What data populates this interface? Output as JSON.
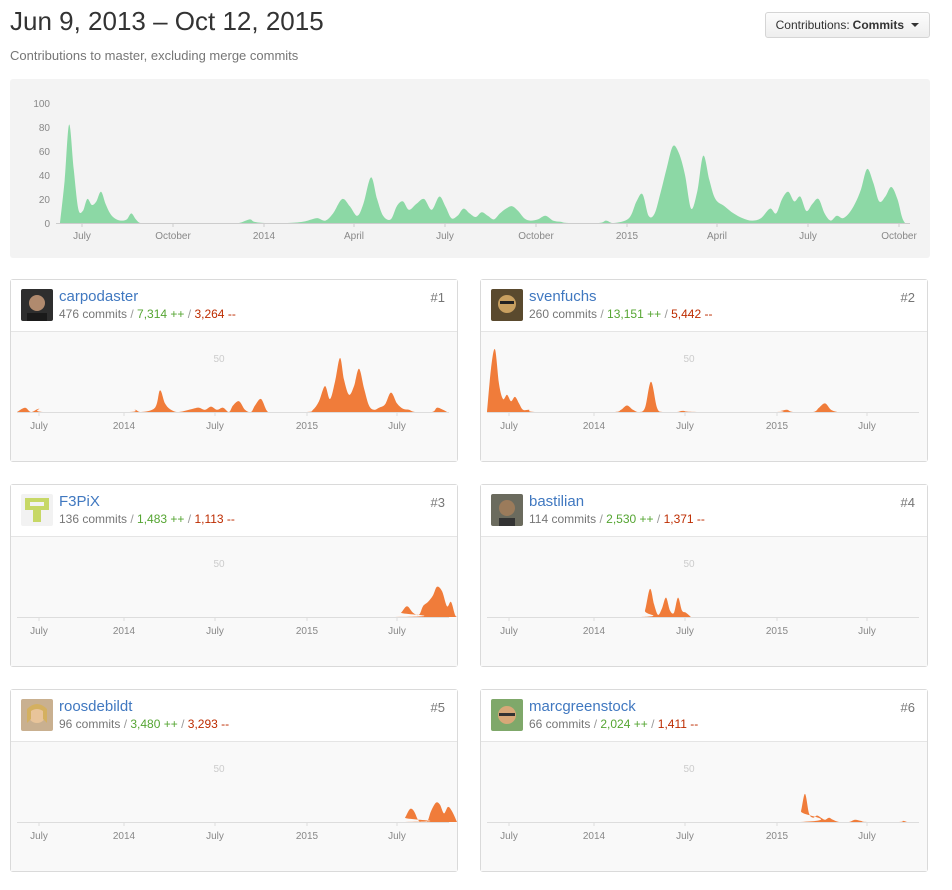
{
  "header": {
    "title": "Jun 9, 2013 – Oct 12, 2015",
    "subtitle": "Contributions to master, excluding merge commits",
    "select_label": "Contributions:",
    "select_value": "Commits"
  },
  "colors": {
    "main_area": "#8cd8a5",
    "contrib_area": "#f07c3a",
    "link": "#4078c0",
    "additions": "#55a532",
    "deletions": "#bd2c00"
  },
  "chart_data": [
    {
      "type": "area",
      "name": "main",
      "y_ticks": [
        0,
        20,
        40,
        60,
        80,
        100
      ],
      "ylim": [
        0,
        100
      ],
      "x_ticks": [
        "July",
        "October",
        "2014",
        "April",
        "July",
        "October",
        "2015",
        "April",
        "July",
        "October"
      ],
      "points": [
        [
          0,
          0
        ],
        [
          3,
          35
        ],
        [
          6,
          82
        ],
        [
          9,
          45
        ],
        [
          12,
          12
        ],
        [
          15,
          10
        ],
        [
          18,
          20
        ],
        [
          21,
          15
        ],
        [
          24,
          18
        ],
        [
          27,
          26
        ],
        [
          30,
          16
        ],
        [
          33,
          8
        ],
        [
          36,
          4
        ],
        [
          40,
          2
        ],
        [
          44,
          3
        ],
        [
          47,
          8
        ],
        [
          50,
          3
        ],
        [
          53,
          0
        ],
        [
          60,
          0
        ],
        [
          100,
          0
        ],
        [
          110,
          0
        ],
        [
          118,
          0
        ],
        [
          125,
          3
        ],
        [
          128,
          1
        ],
        [
          135,
          0
        ],
        [
          150,
          0
        ],
        [
          160,
          1
        ],
        [
          166,
          3
        ],
        [
          170,
          4
        ],
        [
          175,
          2
        ],
        [
          180,
          8
        ],
        [
          186,
          20
        ],
        [
          191,
          14
        ],
        [
          196,
          6
        ],
        [
          200,
          16
        ],
        [
          205,
          38
        ],
        [
          209,
          20
        ],
        [
          213,
          6
        ],
        [
          218,
          3
        ],
        [
          222,
          14
        ],
        [
          226,
          18
        ],
        [
          230,
          11
        ],
        [
          235,
          16
        ],
        [
          240,
          20
        ],
        [
          245,
          11
        ],
        [
          250,
          22
        ],
        [
          254,
          14
        ],
        [
          258,
          4
        ],
        [
          262,
          6
        ],
        [
          266,
          12
        ],
        [
          270,
          8
        ],
        [
          274,
          5
        ],
        [
          278,
          9
        ],
        [
          282,
          6
        ],
        [
          286,
          3
        ],
        [
          290,
          8
        ],
        [
          294,
          12
        ],
        [
          298,
          14
        ],
        [
          302,
          10
        ],
        [
          306,
          4
        ],
        [
          310,
          2
        ],
        [
          315,
          3
        ],
        [
          320,
          6
        ],
        [
          325,
          2
        ],
        [
          330,
          1
        ],
        [
          335,
          0
        ],
        [
          355,
          0
        ],
        [
          360,
          2
        ],
        [
          365,
          0
        ],
        [
          375,
          4
        ],
        [
          380,
          18
        ],
        [
          384,
          24
        ],
        [
          388,
          6
        ],
        [
          392,
          8
        ],
        [
          396,
          26
        ],
        [
          400,
          46
        ],
        [
          404,
          64
        ],
        [
          408,
          58
        ],
        [
          412,
          40
        ],
        [
          416,
          12
        ],
        [
          420,
          26
        ],
        [
          424,
          56
        ],
        [
          428,
          36
        ],
        [
          432,
          20
        ],
        [
          438,
          14
        ],
        [
          444,
          8
        ],
        [
          450,
          4
        ],
        [
          456,
          2
        ],
        [
          462,
          4
        ],
        [
          468,
          12
        ],
        [
          472,
          8
        ],
        [
          476,
          20
        ],
        [
          480,
          26
        ],
        [
          484,
          18
        ],
        [
          488,
          22
        ],
        [
          492,
          10
        ],
        [
          496,
          16
        ],
        [
          500,
          20
        ],
        [
          504,
          8
        ],
        [
          508,
          2
        ],
        [
          512,
          6
        ],
        [
          516,
          4
        ],
        [
          520,
          8
        ],
        [
          524,
          16
        ],
        [
          528,
          28
        ],
        [
          532,
          45
        ],
        [
          536,
          34
        ],
        [
          540,
          18
        ],
        [
          544,
          22
        ],
        [
          548,
          30
        ],
        [
          552,
          20
        ],
        [
          555,
          5
        ],
        [
          557,
          0
        ]
      ]
    },
    {
      "type": "area",
      "name": "per-contributor",
      "y_ticks": [
        50
      ],
      "ylim": [
        0,
        60
      ],
      "x_ticks": [
        "July",
        "2014",
        "July",
        "2015",
        "July"
      ]
    }
  ],
  "contributors": [
    {
      "rank": "#1",
      "login": "carpodaster",
      "commits": "476 commits",
      "additions": "7,314 ++",
      "deletions": "3,264 --",
      "points": [
        [
          0,
          0
        ],
        [
          8,
          4
        ],
        [
          14,
          0
        ],
        [
          22,
          3
        ],
        [
          28,
          0
        ],
        [
          110,
          0
        ],
        [
          118,
          2
        ],
        [
          124,
          0
        ],
        [
          138,
          4
        ],
        [
          143,
          20
        ],
        [
          148,
          8
        ],
        [
          154,
          2
        ],
        [
          162,
          0
        ],
        [
          176,
          3
        ],
        [
          182,
          4
        ],
        [
          188,
          2
        ],
        [
          194,
          5
        ],
        [
          200,
          2
        ],
        [
          206,
          4
        ],
        [
          212,
          0
        ],
        [
          216,
          6
        ],
        [
          222,
          10
        ],
        [
          228,
          2
        ],
        [
          234,
          0
        ],
        [
          238,
          6
        ],
        [
          244,
          12
        ],
        [
          250,
          1
        ],
        [
          256,
          0
        ],
        [
          290,
          0
        ],
        [
          296,
          2
        ],
        [
          302,
          10
        ],
        [
          308,
          24
        ],
        [
          313,
          12
        ],
        [
          318,
          28
        ],
        [
          323,
          50
        ],
        [
          327,
          30
        ],
        [
          332,
          16
        ],
        [
          337,
          24
        ],
        [
          342,
          40
        ],
        [
          347,
          22
        ],
        [
          352,
          6
        ],
        [
          357,
          2
        ],
        [
          362,
          4
        ],
        [
          368,
          7
        ],
        [
          374,
          18
        ],
        [
          380,
          8
        ],
        [
          386,
          3
        ],
        [
          392,
          2
        ],
        [
          398,
          0
        ],
        [
          415,
          0
        ],
        [
          420,
          4
        ],
        [
          426,
          2
        ],
        [
          430,
          0
        ]
      ]
    },
    {
      "rank": "#2",
      "login": "svenfuchs",
      "commits": "260 commits",
      "additions": "13,151 ++",
      "deletions": "5,442 --",
      "points": [
        [
          0,
          0
        ],
        [
          4,
          40
        ],
        [
          8,
          58
        ],
        [
          12,
          26
        ],
        [
          16,
          12
        ],
        [
          20,
          16
        ],
        [
          24,
          10
        ],
        [
          28,
          14
        ],
        [
          32,
          8
        ],
        [
          36,
          2
        ],
        [
          42,
          2
        ],
        [
          48,
          0
        ],
        [
          100,
          0
        ],
        [
          128,
          0
        ],
        [
          134,
          2
        ],
        [
          140,
          6
        ],
        [
          146,
          2
        ],
        [
          152,
          0
        ],
        [
          158,
          4
        ],
        [
          164,
          28
        ],
        [
          170,
          4
        ],
        [
          176,
          0
        ],
        [
          190,
          0
        ],
        [
          196,
          1
        ],
        [
          210,
          0
        ],
        [
          290,
          0
        ],
        [
          294,
          1
        ],
        [
          300,
          2
        ],
        [
          306,
          0
        ],
        [
          326,
          0
        ],
        [
          332,
          4
        ],
        [
          338,
          8
        ],
        [
          344,
          2
        ],
        [
          350,
          0
        ]
      ]
    },
    {
      "rank": "#3",
      "login": "F3PiX",
      "commits": "136 commits",
      "additions": "1,483 ++",
      "deletions": "1,113 --",
      "points": [
        [
          0,
          0
        ],
        [
          378,
          0
        ],
        [
          384,
          4
        ],
        [
          390,
          10
        ],
        [
          396,
          4
        ],
        [
          402,
          2
        ],
        [
          406,
          10
        ],
        [
          411,
          14
        ],
        [
          416,
          20
        ],
        [
          420,
          28
        ],
        [
          425,
          24
        ],
        [
          430,
          10
        ],
        [
          434,
          14
        ],
        [
          438,
          2
        ],
        [
          440,
          0
        ]
      ]
    },
    {
      "rank": "#4",
      "login": "bastilian",
      "commits": "114 commits",
      "additions": "2,530 ++",
      "deletions": "1,371 --",
      "points": [
        [
          0,
          0
        ],
        [
          154,
          0
        ],
        [
          158,
          6
        ],
        [
          163,
          26
        ],
        [
          167,
          12
        ],
        [
          171,
          2
        ],
        [
          175,
          8
        ],
        [
          179,
          18
        ],
        [
          183,
          6
        ],
        [
          187,
          4
        ],
        [
          191,
          18
        ],
        [
          195,
          6
        ],
        [
          199,
          4
        ],
        [
          204,
          0
        ]
      ]
    },
    {
      "rank": "#5",
      "login": "roosdebildt",
      "commits": "96 commits",
      "additions": "3,480 ++",
      "deletions": "3,293 --",
      "points": [
        [
          0,
          0
        ],
        [
          384,
          0
        ],
        [
          388,
          4
        ],
        [
          393,
          12
        ],
        [
          397,
          10
        ],
        [
          401,
          2
        ],
        [
          404,
          0
        ],
        [
          410,
          0
        ],
        [
          414,
          10
        ],
        [
          419,
          18
        ],
        [
          423,
          16
        ],
        [
          427,
          8
        ],
        [
          431,
          14
        ],
        [
          435,
          10
        ],
        [
          440,
          0
        ]
      ]
    },
    {
      "rank": "#6",
      "login": "marcgreenstock",
      "commits": "66 commits",
      "additions": "2,024 ++",
      "deletions": "1,411 --",
      "points": [
        [
          0,
          0
        ],
        [
          310,
          0
        ],
        [
          314,
          10
        ],
        [
          318,
          26
        ],
        [
          322,
          8
        ],
        [
          326,
          4
        ],
        [
          330,
          6
        ],
        [
          334,
          4
        ],
        [
          338,
          2
        ],
        [
          342,
          4
        ],
        [
          346,
          2
        ],
        [
          352,
          0
        ],
        [
          362,
          0
        ],
        [
          368,
          2
        ],
        [
          374,
          1
        ],
        [
          380,
          0
        ],
        [
          412,
          0
        ],
        [
          416,
          1
        ],
        [
          420,
          0
        ]
      ]
    }
  ]
}
